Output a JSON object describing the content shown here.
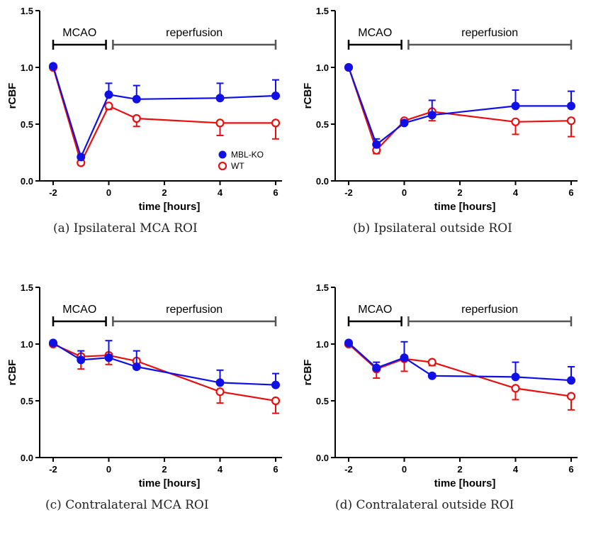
{
  "colors": {
    "mbl_ko": "#1010e6",
    "wt": "#e61010",
    "axis": "#000000",
    "phase_mcao": "#000000",
    "phase_reperfusion": "#555555"
  },
  "chart_data": [
    {
      "type": "line",
      "caption": "(a) Ipsilateral MCA ROI",
      "xlabel": "time [hours]",
      "ylabel": "rCBF",
      "xlim": [
        -2,
        6
      ],
      "ylim": [
        0,
        1.5
      ],
      "xticks": [
        "-2",
        "0",
        "2",
        "4",
        "6"
      ],
      "yticks": [
        "0.0",
        "0.5",
        "1.0",
        "1.5"
      ],
      "phases": {
        "mcao": "MCAO",
        "reperfusion": "reperfusion"
      },
      "legend": {
        "show": true,
        "position": "lower-right"
      },
      "x": [
        -2,
        -1,
        0,
        1,
        4,
        6
      ],
      "series": [
        {
          "name": "MBL-KO",
          "marker": "filled-circle",
          "values": [
            1.01,
            0.21,
            0.76,
            0.72,
            0.73,
            0.75
          ],
          "err": [
            0,
            0.02,
            0.1,
            0.12,
            0.13,
            0.14
          ]
        },
        {
          "name": "WT",
          "marker": "open-circle",
          "values": [
            1.0,
            0.16,
            0.66,
            0.55,
            0.51,
            0.51
          ],
          "err": [
            0,
            0.02,
            0.03,
            0.07,
            0.11,
            0.14
          ]
        }
      ]
    },
    {
      "type": "line",
      "caption": "(b) Ipsilateral outside ROI",
      "xlabel": "time [hours]",
      "ylabel": "rCBF",
      "xlim": [
        -2,
        6
      ],
      "ylim": [
        0,
        1.5
      ],
      "xticks": [
        "-2",
        "0",
        "2",
        "4",
        "6"
      ],
      "yticks": [
        "0.0",
        "0.5",
        "1.0",
        "1.5"
      ],
      "phases": {
        "mcao": "MCAO",
        "reperfusion": "reperfusion"
      },
      "legend": {
        "show": false
      },
      "x": [
        -2,
        -1,
        0,
        1,
        4,
        6
      ],
      "series": [
        {
          "name": "MBL-KO",
          "marker": "filled-circle",
          "values": [
            1.0,
            0.32,
            0.51,
            0.58,
            0.66,
            0.66
          ],
          "err": [
            0,
            0.05,
            0.02,
            0.13,
            0.14,
            0.13
          ]
        },
        {
          "name": "WT",
          "marker": "open-circle",
          "values": [
            1.0,
            0.27,
            0.53,
            0.61,
            0.52,
            0.53
          ],
          "err": [
            0,
            0.03,
            0.02,
            0.08,
            0.11,
            0.14
          ]
        }
      ]
    },
    {
      "type": "line",
      "caption": "(c) Contralateral MCA ROI",
      "xlabel": "time [hours]",
      "ylabel": "rCBF",
      "xlim": [
        -2,
        6
      ],
      "ylim": [
        0,
        1.5
      ],
      "xticks": [
        "-2",
        "0",
        "2",
        "4",
        "6"
      ],
      "yticks": [
        "0.0",
        "0.5",
        "1.0",
        "1.5"
      ],
      "phases": {
        "mcao": "MCAO",
        "reperfusion": "reperfusion"
      },
      "legend": {
        "show": false
      },
      "x": [
        -2,
        -1,
        0,
        1,
        4,
        6
      ],
      "series": [
        {
          "name": "MBL-KO",
          "marker": "filled-circle",
          "values": [
            1.01,
            0.86,
            0.88,
            0.8,
            0.66,
            0.64
          ],
          "err": [
            0,
            0.08,
            0.15,
            0.14,
            0.11,
            0.1
          ]
        },
        {
          "name": "WT",
          "marker": "open-circle",
          "values": [
            1.0,
            0.89,
            0.9,
            0.85,
            0.58,
            0.5
          ],
          "err": [
            0,
            0.11,
            0.08,
            0.07,
            0.1,
            0.11
          ]
        }
      ]
    },
    {
      "type": "line",
      "caption": "(d) Contralateral outside ROI",
      "xlabel": "time [hours]",
      "ylabel": "rCBF",
      "xlim": [
        -2,
        6
      ],
      "ylim": [
        0,
        1.5
      ],
      "xticks": [
        "-2",
        "0",
        "2",
        "4",
        "6"
      ],
      "yticks": [
        "0.0",
        "0.5",
        "1.0",
        "1.5"
      ],
      "phases": {
        "mcao": "MCAO",
        "reperfusion": "reperfusion"
      },
      "legend": {
        "show": false
      },
      "x": [
        -2,
        -1,
        0,
        1,
        4,
        6
      ],
      "series": [
        {
          "name": "MBL-KO",
          "marker": "filled-circle",
          "values": [
            1.01,
            0.79,
            0.88,
            0.72,
            0.71,
            0.68
          ],
          "err": [
            0,
            0.05,
            0.14,
            0.02,
            0.13,
            0.12
          ]
        },
        {
          "name": "WT",
          "marker": "open-circle",
          "values": [
            1.0,
            0.78,
            0.87,
            0.84,
            0.61,
            0.54
          ],
          "err": [
            0,
            0.08,
            0.11,
            0.03,
            0.1,
            0.12
          ]
        }
      ]
    }
  ]
}
